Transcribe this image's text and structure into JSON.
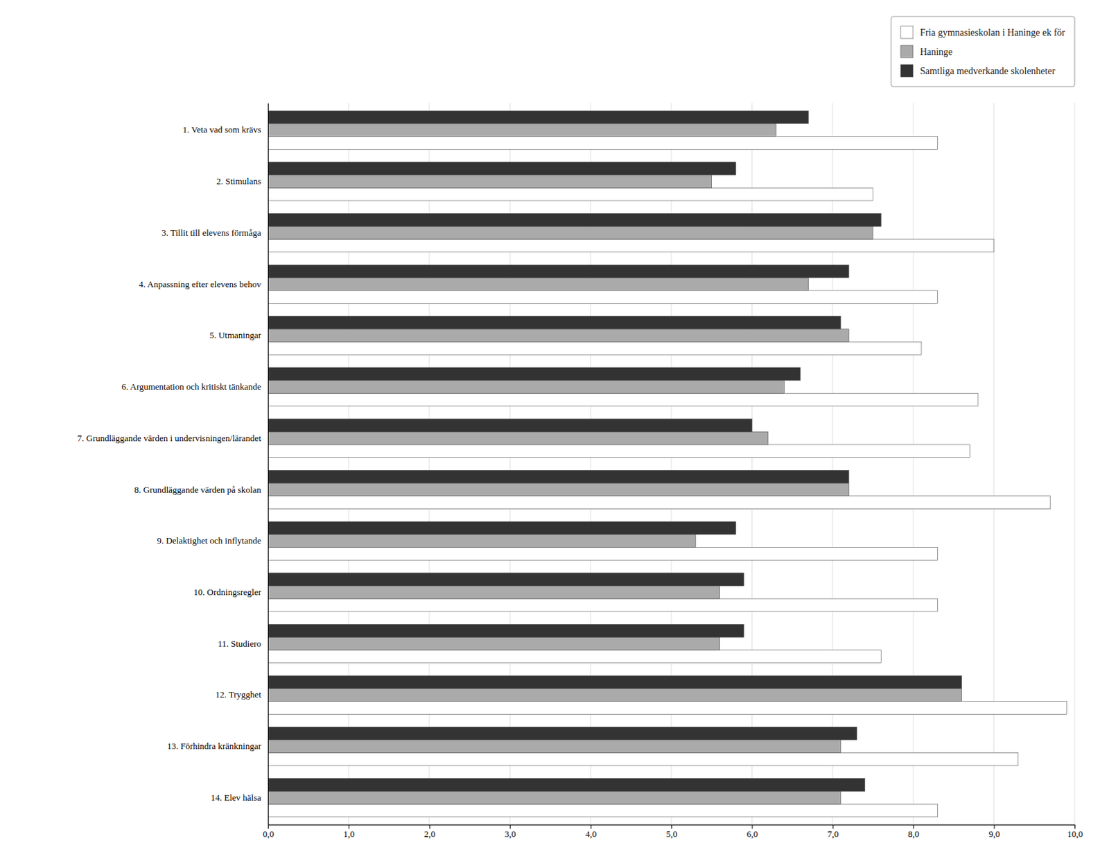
{
  "chart_data": {
    "type": "bar",
    "orientation": "horizontal",
    "categories": [
      "1. Veta vad som krävs",
      "2. Stimulans",
      "3. Tillit till elevens förmåga",
      "4. Anpassning efter elevens behov",
      "5. Utmaningar",
      "6. Argumentation och kritiskt tänkande",
      "7. Grundläggande värden i undervisningen/lärandet",
      "8. Grundläggande värden på skolan",
      "9. Delaktighet och inflytande",
      "10. Ordningsregler",
      "11. Studiero",
      "12. Trygghet",
      "13. Förhindra kränkningar",
      "14. Elev hälsa"
    ],
    "series": [
      {
        "name": "Fria gymnasieskolan i Haninge ek för",
        "color": "#ffffff",
        "values": [
          8.3,
          7.5,
          9.0,
          8.3,
          8.1,
          8.8,
          8.7,
          9.7,
          8.3,
          8.3,
          7.6,
          9.9,
          9.3,
          8.3
        ]
      },
      {
        "name": "Haninge",
        "color": "#aaaaaa",
        "values": [
          6.3,
          5.5,
          7.5,
          6.7,
          7.2,
          6.4,
          6.2,
          7.2,
          5.3,
          5.6,
          5.6,
          8.6,
          7.1,
          7.1
        ]
      },
      {
        "name": "Samtliga medverkande skolenheter",
        "color": "#333333",
        "values": [
          6.7,
          5.8,
          7.6,
          7.2,
          7.1,
          6.6,
          6.0,
          7.2,
          5.8,
          5.9,
          5.9,
          8.6,
          7.3,
          7.4
        ]
      }
    ],
    "xlim": [
      0,
      10
    ],
    "xticks": [
      {
        "value": 0.0,
        "label": "0,0"
      },
      {
        "value": 1.0,
        "label": "1,0"
      },
      {
        "value": 2.0,
        "label": "2,0"
      },
      {
        "value": 3.0,
        "label": "3,0"
      },
      {
        "value": 4.0,
        "label": "4,0"
      },
      {
        "value": 5.0,
        "label": "5,0"
      },
      {
        "value": 6.0,
        "label": "6,0"
      },
      {
        "value": 7.0,
        "label": "7,0"
      },
      {
        "value": 8.0,
        "label": "8,0"
      },
      {
        "value": 9.0,
        "label": "9,0"
      },
      {
        "value": 10.0,
        "label": "10,0"
      }
    ],
    "grid": true,
    "legend": "upper right"
  }
}
